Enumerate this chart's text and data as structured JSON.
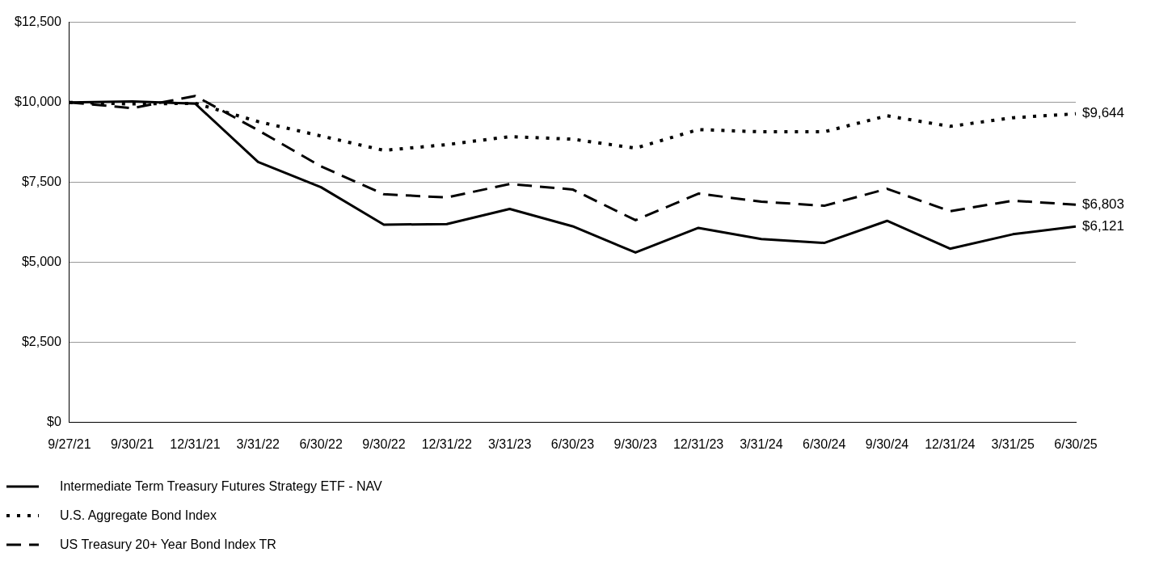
{
  "chart_data": {
    "type": "line",
    "categories": [
      "9/27/21",
      "9/30/21",
      "12/31/21",
      "3/31/22",
      "6/30/22",
      "9/30/22",
      "12/31/22",
      "3/31/23",
      "6/30/23",
      "9/30/23",
      "12/31/23",
      "3/31/24",
      "6/30/24",
      "9/30/24",
      "12/31/24",
      "3/31/25",
      "6/30/25"
    ],
    "series": [
      {
        "name": "Intermediate Term Treasury Futures Strategy ETF - NAV",
        "color": "#000000",
        "line_style": "solid",
        "values": [
          10000,
          10030,
          9960,
          8140,
          7350,
          6180,
          6200,
          6670,
          6130,
          5310,
          6080,
          5730,
          5610,
          6300,
          5430,
          5880,
          6121
        ]
      },
      {
        "name": "U.S. Aggregate Bond Index",
        "color": "#000000",
        "line_style": "dotted",
        "values": [
          10000,
          9950,
          9970,
          9400,
          8950,
          8500,
          8680,
          8930,
          8850,
          8570,
          9150,
          9080,
          9080,
          9580,
          9250,
          9520,
          9644
        ]
      },
      {
        "name": "US Treasury 20+ Year Bond Index TR",
        "color": "#000000",
        "line_style": "dashed",
        "values": [
          10000,
          9820,
          10200,
          9130,
          8000,
          7130,
          7030,
          7450,
          7280,
          6320,
          7150,
          6900,
          6770,
          7300,
          6600,
          6930,
          6803
        ]
      }
    ],
    "ylim": [
      0,
      12500
    ],
    "yticks": [
      {
        "value": 0,
        "label": "$0"
      },
      {
        "value": 2500,
        "label": "$2,500"
      },
      {
        "value": 5000,
        "label": "$5,000"
      },
      {
        "value": 7500,
        "label": "$7,500"
      },
      {
        "value": 10000,
        "label": "$10,000"
      },
      {
        "value": 12500,
        "label": "$12,500"
      }
    ],
    "grid": "y",
    "legend": "bottom",
    "marker": "none",
    "annotations": [
      {
        "text": "$9,644",
        "x": "6/30/25",
        "y": 9644
      },
      {
        "text": "$6,803",
        "x": "6/30/25",
        "y": 6803
      },
      {
        "text": "$6,121",
        "x": "6/30/25",
        "y": 6121
      }
    ]
  }
}
